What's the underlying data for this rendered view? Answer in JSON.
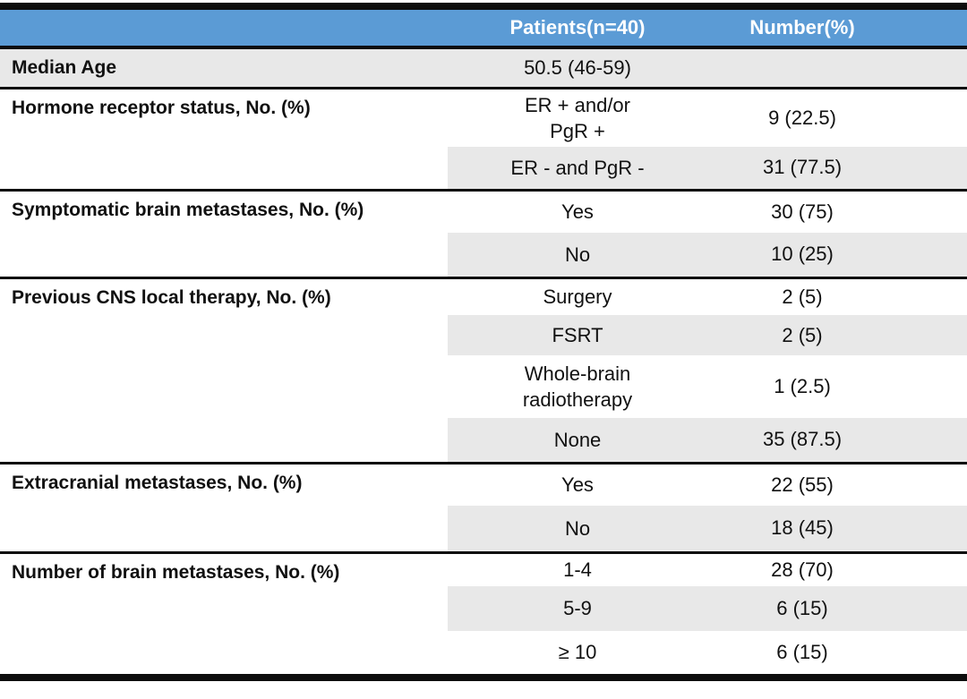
{
  "colors": {
    "header_blue": "#5b9bd5",
    "header_text": "#ffffff",
    "row_shade": "#e8e8e8",
    "rule_black": "#0d0d0d",
    "text": "#111111"
  },
  "table": {
    "header": {
      "patients": "Patients(n=40)",
      "number": "Number(%)"
    },
    "sections": [
      {
        "label": "Median Age",
        "rows": [
          {
            "value_lines": [
              "50.5 (46-59)"
            ],
            "number": ""
          }
        ]
      },
      {
        "label": "Hormone receptor status, No. (%)",
        "rows": [
          {
            "value_lines": [
              "ER + and/or",
              "PgR +"
            ],
            "number": "9 (22.5)"
          },
          {
            "value_lines": [
              "ER - and PgR -"
            ],
            "number": "31 (77.5)"
          }
        ]
      },
      {
        "label": "Symptomatic brain metastases, No. (%)",
        "rows": [
          {
            "value_lines": [
              "Yes"
            ],
            "number": "30 (75)"
          },
          {
            "value_lines": [
              "No"
            ],
            "number": "10 (25)"
          }
        ]
      },
      {
        "label": "Previous CNS local therapy, No. (%)",
        "rows": [
          {
            "value_lines": [
              "Surgery"
            ],
            "number": "2 (5)"
          },
          {
            "value_lines": [
              "FSRT"
            ],
            "number": "2 (5)"
          },
          {
            "value_lines": [
              "Whole-brain",
              "radiotherapy"
            ],
            "number": "1 (2.5)"
          },
          {
            "value_lines": [
              "None"
            ],
            "number": "35 (87.5)"
          }
        ]
      },
      {
        "label": "Extracranial metastases, No. (%)",
        "rows": [
          {
            "value_lines": [
              "Yes"
            ],
            "number": "22 (55)"
          },
          {
            "value_lines": [
              "No"
            ],
            "number": "18 (45)"
          }
        ]
      },
      {
        "label": "Number of brain metastases, No. (%)",
        "rows": [
          {
            "value_lines": [
              "1-4"
            ],
            "number": "28 (70)"
          },
          {
            "value_lines": [
              "5-9"
            ],
            "number": "6 (15)"
          },
          {
            "value_lines": [
              "≥ 10"
            ],
            "number": "6 (15)"
          }
        ]
      }
    ]
  }
}
